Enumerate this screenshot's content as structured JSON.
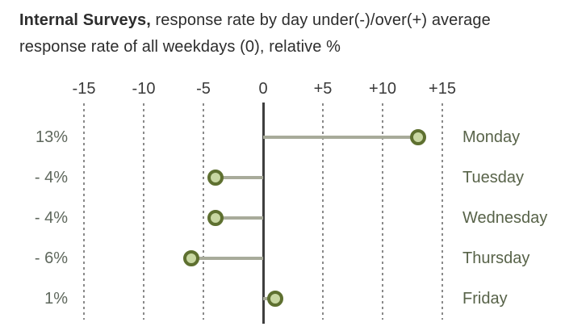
{
  "title": {
    "bold": "Internal Surveys,",
    "rest_line1": " response rate by day under(-)/over(+) average",
    "line2": "response rate of all weekdays (0), relative %"
  },
  "chart_data": {
    "type": "bar",
    "style": "horizontal-lollipop",
    "title": "Internal Surveys, response rate by day under(-)/over(+) average response rate of all weekdays (0), relative %",
    "categories": [
      "Monday",
      "Tuesday",
      "Wednesday",
      "Thursday",
      "Friday"
    ],
    "values": [
      13,
      -4,
      -4,
      -6,
      1
    ],
    "value_labels": [
      "13%",
      "- 4%",
      "- 4%",
      "- 6%",
      "1%"
    ],
    "x_ticks": [
      -15,
      -10,
      -5,
      0,
      5,
      10,
      15
    ],
    "x_tick_labels": [
      "-15",
      "-10",
      "-5",
      "0",
      "+5",
      "+10",
      "+15"
    ],
    "xlim": [
      -17.5,
      17.5
    ],
    "ylabel": "",
    "xlabel": "relative %",
    "grid": "dashed-vertical",
    "legend": "none",
    "colors": {
      "dot_fill": "#c8d7a2",
      "dot_ring": "#5e7030",
      "stem": "#a8ab9a",
      "zero_line": "#3e3e3e",
      "gridline": "#8a8a8a",
      "value_label": "#5e675c",
      "day_label": "#586349",
      "title": "#2d2d2d",
      "tick_label": "#3a3a3a"
    }
  }
}
